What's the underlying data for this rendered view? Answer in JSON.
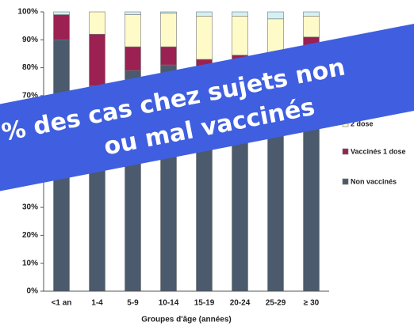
{
  "chart_data": {
    "type": "stacked_bar",
    "x_label": "Groupes d'âge (années)",
    "categories": [
      "<1 an",
      "1-4",
      "5-9",
      "10-14",
      "15-19",
      "20-24",
      "25-29",
      "≥ 30"
    ],
    "series": [
      {
        "name": "Non vaccinés",
        "color": "#4b5a6c",
        "values": [
          90,
          73.5,
          79,
          81,
          74,
          74,
          72,
          80
        ]
      },
      {
        "name": "Vaccinés 1 dose",
        "color": "#9b2152",
        "values": [
          9,
          18.5,
          8.5,
          6.5,
          9,
          10.5,
          9,
          11
        ]
      },
      {
        "name": "2 dose",
        "color": "#fffbc9",
        "values": [
          0,
          8,
          11.5,
          12,
          15.5,
          14,
          16.5,
          7.5
        ]
      },
      {
        "color": "#d3f0f5",
        "values": [
          1,
          0,
          1,
          0.5,
          1.5,
          1.5,
          2.5,
          1.5
        ]
      }
    ],
    "ylim": [
      0,
      100
    ],
    "yticks": [
      {
        "value": 0,
        "label": "0%"
      },
      {
        "value": 10,
        "label": "10%"
      },
      {
        "value": 20,
        "label": "20%"
      },
      {
        "value": 30,
        "label": "30%"
      },
      {
        "value": 40,
        "label": "40%"
      },
      {
        "value": 50,
        "label": "50%"
      },
      {
        "value": 60,
        "label": "60%"
      },
      {
        "value": 70,
        "label": "70%"
      },
      {
        "value": 80,
        "label": "80%"
      },
      {
        "value": 90,
        "label": "90%"
      },
      {
        "value": 100,
        "label": "100%"
      }
    ],
    "banner": [
      "% des cas chez sujets non",
      "ou mal vaccinés"
    ]
  }
}
